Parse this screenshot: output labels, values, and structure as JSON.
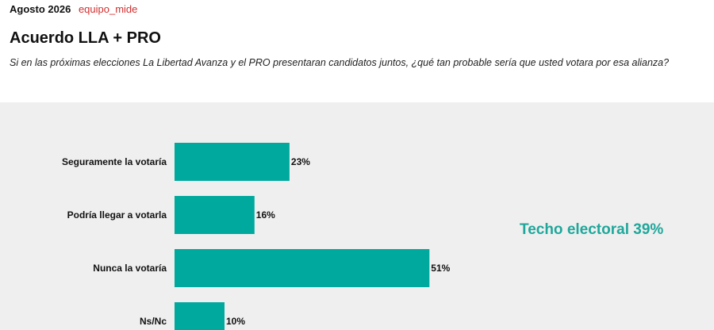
{
  "header": {
    "date": "Agosto 2026",
    "brand": "equipo_mide",
    "title": "Acuerdo LLA + PRO",
    "subtitle": "Si en las próximas elecciones La Libertad Avanza y el PRO presentaran candidatos juntos, ¿qué tan probable sería que usted votara por esa alianza?"
  },
  "callout": "Techo electoral 39%",
  "colors": {
    "bar": "#00a99d",
    "callout": "#1fa79b",
    "panel": "#efefef"
  },
  "chart_data": {
    "type": "bar",
    "orientation": "horizontal",
    "categories": [
      "Seguramente la votaría",
      "Podría llegar a votarla",
      "Nunca la votaría",
      "Ns/Nc"
    ],
    "values": [
      23,
      16,
      51,
      10
    ],
    "value_labels": [
      "23%",
      "16%",
      "51%",
      "10%"
    ],
    "unit": "%",
    "xlim": [
      0,
      100
    ],
    "grid": false,
    "legend": "none"
  }
}
